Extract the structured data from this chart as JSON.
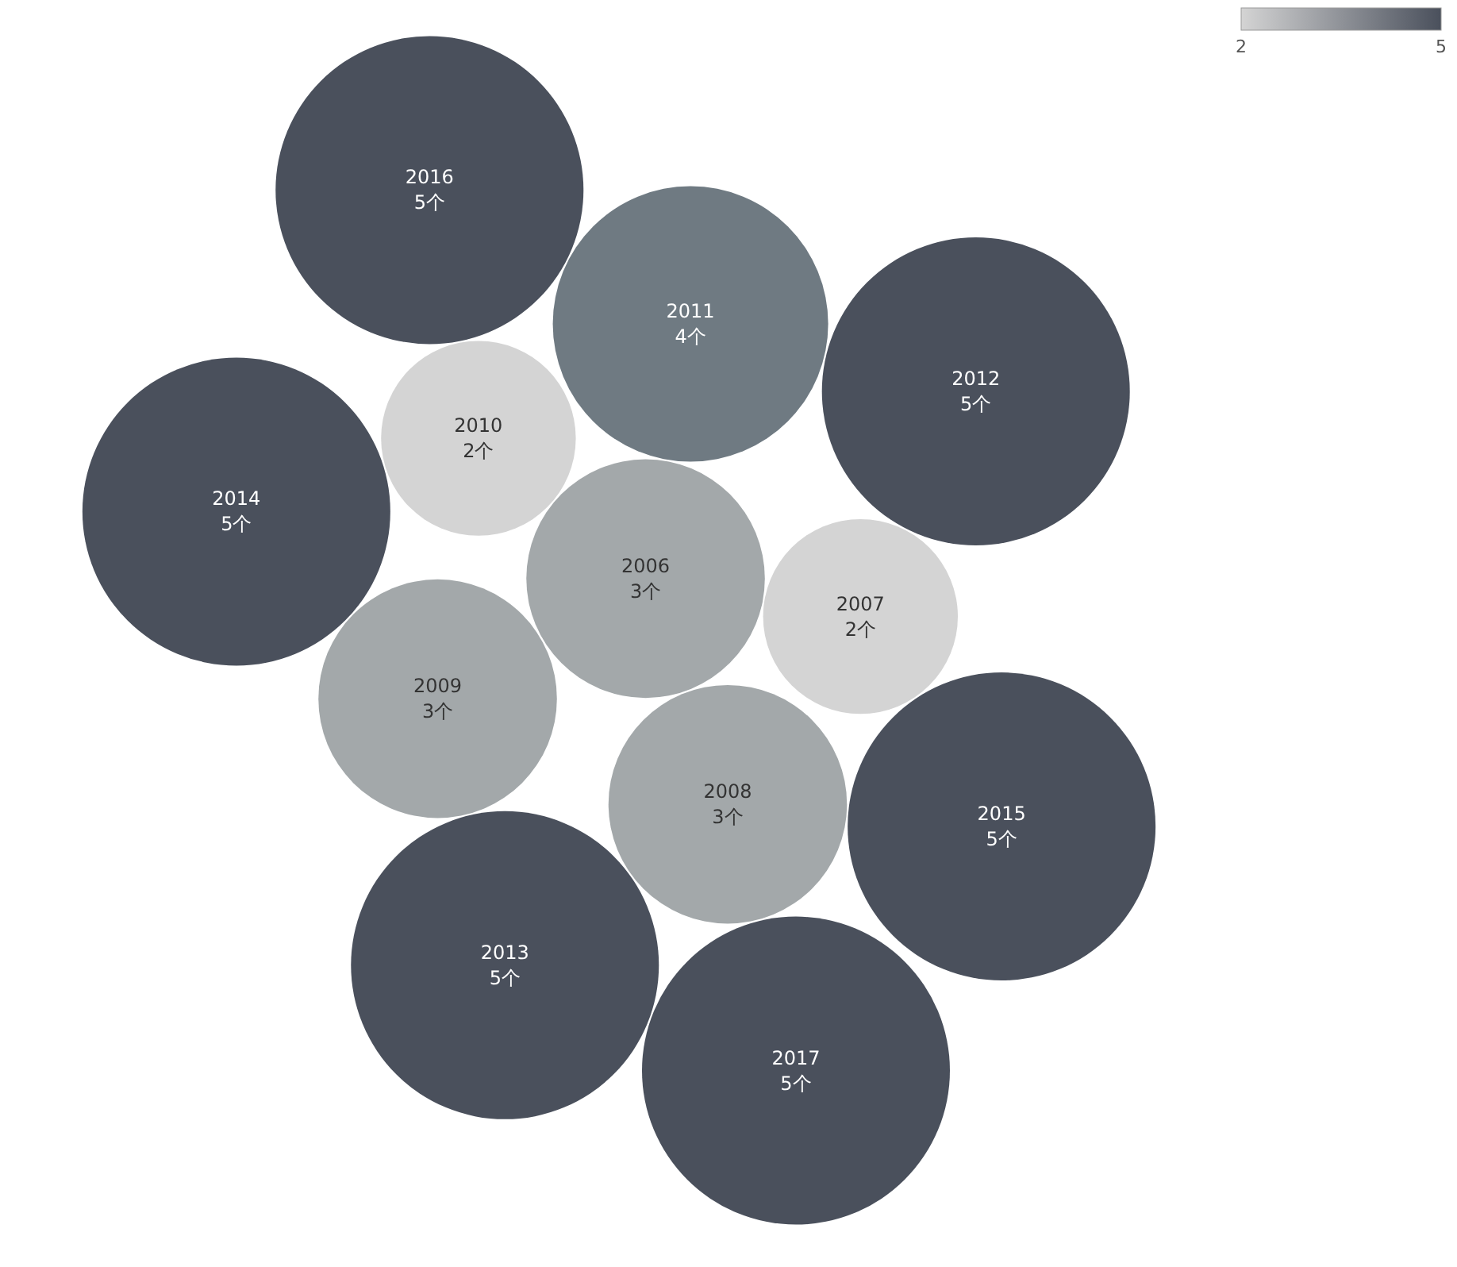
{
  "chart_data": {
    "type": "other",
    "categories": [
      "2006",
      "2007",
      "2008",
      "2009",
      "2010",
      "2011",
      "2012",
      "2013",
      "2014",
      "2015",
      "2016",
      "2017"
    ],
    "values": [
      3,
      2,
      3,
      3,
      2,
      4,
      5,
      5,
      5,
      5,
      5,
      5
    ],
    "value_labels": [
      "3个",
      "2个",
      "3个",
      "3个",
      "2个",
      "4个",
      "5个",
      "5个",
      "5个",
      "5个",
      "5个",
      "5个"
    ],
    "colors": [
      "#a3a8aa",
      "#d4d4d4",
      "#a3a8aa",
      "#a3a8aa",
      "#d4d4d4",
      "#6f7a82",
      "#4a505c",
      "#4a505c",
      "#4a505c",
      "#4a505c",
      "#4a505c",
      "#4a505c"
    ],
    "annotations": [
      "2",
      "5"
    ]
  }
}
